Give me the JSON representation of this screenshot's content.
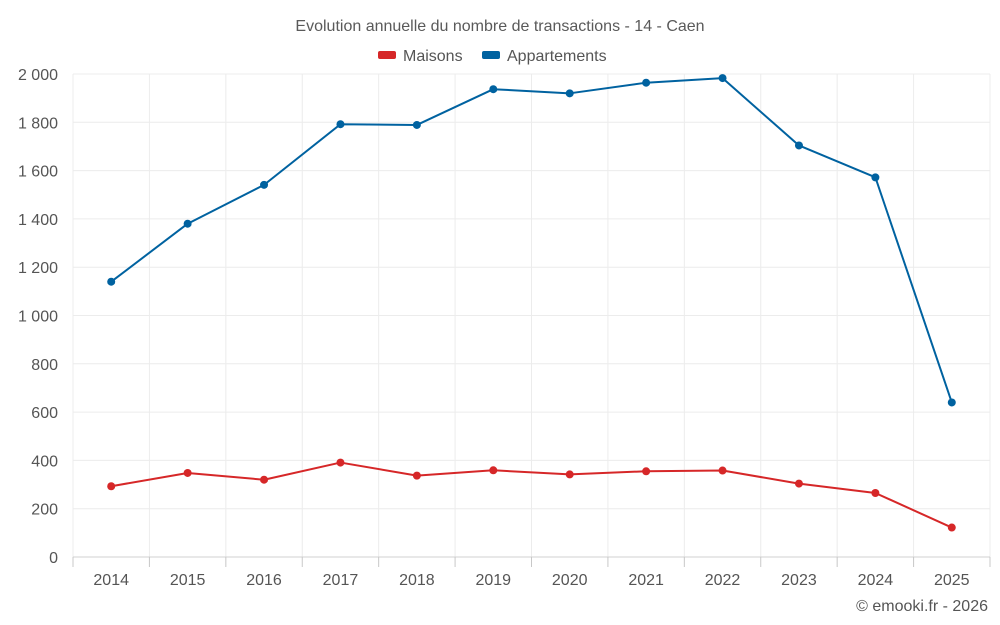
{
  "chart_data": {
    "type": "line",
    "title": "Evolution annuelle du nombre de transactions - 14 - Caen",
    "xlabel": "",
    "ylabel": "",
    "categories": [
      "2014",
      "2015",
      "2016",
      "2017",
      "2018",
      "2019",
      "2020",
      "2021",
      "2022",
      "2023",
      "2024",
      "2025"
    ],
    "ylim": [
      0,
      2000
    ],
    "yticks": [
      0,
      200,
      400,
      600,
      800,
      1000,
      1200,
      1400,
      1600,
      1800,
      2000
    ],
    "ytick_labels": [
      "0",
      "200",
      "400",
      "600",
      "800",
      "1 000",
      "1 200",
      "1 400",
      "1 600",
      "1 800",
      "2 000"
    ],
    "grid": true,
    "legend_position": "top-center",
    "series": [
      {
        "name": "Maisons",
        "color": "#d62728",
        "values": [
          293,
          348,
          320,
          391,
          337,
          359,
          342,
          355,
          358,
          304,
          265,
          122
        ]
      },
      {
        "name": "Appartements",
        "color": "#0062a0",
        "values": [
          1140,
          1380,
          1541,
          1792,
          1789,
          1937,
          1920,
          1964,
          1983,
          1704,
          1572,
          640
        ]
      }
    ]
  },
  "credit": "© emooki.fr - 2026"
}
